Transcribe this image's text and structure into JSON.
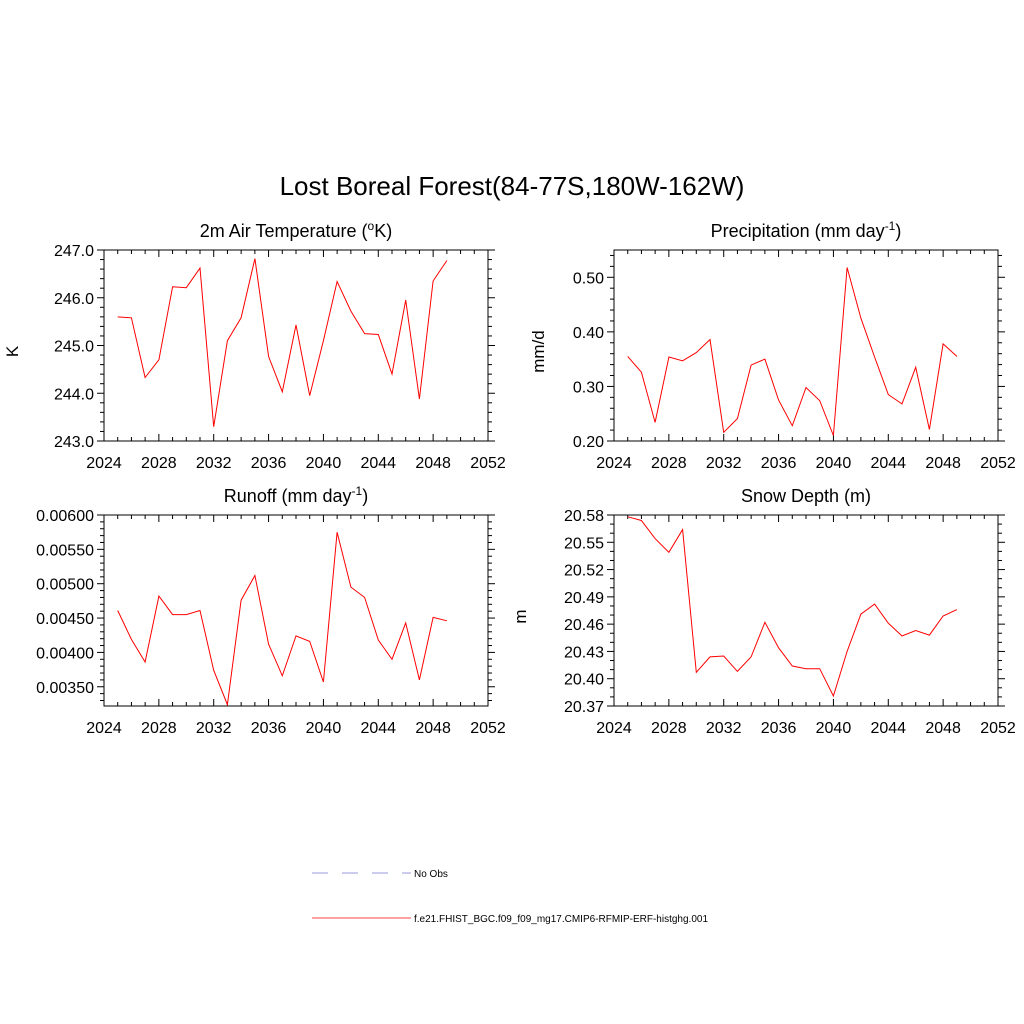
{
  "title": "Lost Boreal Forest(84-77S,180W-162W)",
  "legend": {
    "entries": [
      {
        "label": "No Obs",
        "color": "#9999dd",
        "style": "dashed"
      },
      {
        "label": "f.e21.FHIST_BGC.f09_f09_mg17.CMIP6-RFMIP-ERF-histghg.001",
        "color": "#ff4444",
        "style": "solid"
      }
    ]
  },
  "chart_data": [
    {
      "type": "line",
      "title": "2m Air Temperature (",
      "title_sup": "o",
      "title_end": "K)",
      "ylabel": "K",
      "xlim": [
        2024,
        2052
      ],
      "xticks": [
        2024,
        2028,
        2032,
        2036,
        2040,
        2044,
        2048,
        2052
      ],
      "ylim": [
        243.0,
        247.0
      ],
      "yticks": [
        243.0,
        244.0,
        245.0,
        246.0,
        247.0
      ],
      "ytick_labels": [
        "243.0",
        "244.0",
        "245.0",
        "246.0",
        "247.0"
      ],
      "yminor": 0.2,
      "series": [
        {
          "color": "#ff0000",
          "x": [
            2025,
            2026,
            2027,
            2028,
            2029,
            2030,
            2031,
            2032,
            2033,
            2034,
            2035,
            2036,
            2037,
            2038,
            2039,
            2040,
            2041,
            2042,
            2043,
            2044,
            2045,
            2046,
            2047,
            2048,
            2049
          ],
          "y": [
            245.6,
            245.58,
            244.33,
            244.7,
            246.23,
            246.21,
            246.62,
            243.3,
            245.1,
            245.58,
            246.82,
            244.77,
            244.03,
            245.43,
            243.95,
            245.1,
            246.34,
            245.72,
            245.25,
            245.23,
            244.4,
            245.95,
            243.88,
            246.35,
            246.78
          ]
        }
      ]
    },
    {
      "type": "line",
      "title": "Precipitation (mm day",
      "title_sup": "-1",
      "title_end": ")",
      "ylabel": "mm/d",
      "xlim": [
        2024,
        2052
      ],
      "xticks": [
        2024,
        2028,
        2032,
        2036,
        2040,
        2044,
        2048,
        2052
      ],
      "ylim": [
        0.2,
        0.55
      ],
      "yticks": [
        0.2,
        0.3,
        0.4,
        0.5
      ],
      "ytick_labels": [
        "0.20",
        "0.30",
        "0.40",
        "0.50"
      ],
      "yminor": 0.02,
      "series": [
        {
          "color": "#ff0000",
          "x": [
            2025,
            2026,
            2027,
            2028,
            2029,
            2030,
            2031,
            2032,
            2033,
            2034,
            2035,
            2036,
            2037,
            2038,
            2039,
            2040,
            2041,
            2042,
            2043,
            2044,
            2045,
            2046,
            2047,
            2048,
            2049
          ],
          "y": [
            0.355,
            0.326,
            0.234,
            0.354,
            0.347,
            0.362,
            0.386,
            0.216,
            0.241,
            0.339,
            0.35,
            0.275,
            0.228,
            0.298,
            0.274,
            0.21,
            0.518,
            0.425,
            0.354,
            0.285,
            0.268,
            0.335,
            0.221,
            0.378,
            0.355
          ]
        }
      ]
    },
    {
      "type": "line",
      "title": "Runoff (mm day",
      "title_sup": "-1",
      "title_end": ")",
      "ylabel": "",
      "xlim": [
        2024,
        2052
      ],
      "xticks": [
        2024,
        2028,
        2032,
        2036,
        2040,
        2044,
        2048,
        2052
      ],
      "ylim": [
        0.00322,
        0.006
      ],
      "yticks": [
        0.0035,
        0.004,
        0.0045,
        0.005,
        0.0055,
        0.006
      ],
      "ytick_labels": [
        "0.00350",
        "0.00400",
        "0.00450",
        "0.00500",
        "0.00550",
        "0.00600"
      ],
      "yminor": 0.0001,
      "series": [
        {
          "color": "#ff0000",
          "x": [
            2025,
            2026,
            2027,
            2028,
            2029,
            2030,
            2031,
            2032,
            2033,
            2034,
            2035,
            2036,
            2037,
            2038,
            2039,
            2040,
            2041,
            2042,
            2043,
            2044,
            2045,
            2046,
            2047,
            2048,
            2049
          ],
          "y": [
            0.00461,
            0.00419,
            0.00386,
            0.00482,
            0.00455,
            0.00455,
            0.00461,
            0.00374,
            0.00324,
            0.00476,
            0.00512,
            0.00412,
            0.00366,
            0.00424,
            0.00416,
            0.00357,
            0.00575,
            0.00495,
            0.0048,
            0.00418,
            0.0039,
            0.00443,
            0.0036,
            0.00451,
            0.00446
          ]
        }
      ]
    },
    {
      "type": "line",
      "title": "Snow Depth (m)",
      "title_sup": "",
      "title_end": "",
      "ylabel": "m",
      "xlim": [
        2024,
        2052
      ],
      "xticks": [
        2024,
        2028,
        2032,
        2036,
        2040,
        2044,
        2048,
        2052
      ],
      "ylim": [
        20.37,
        20.58
      ],
      "yticks": [
        20.37,
        20.4,
        20.43,
        20.46,
        20.49,
        20.52,
        20.55,
        20.58
      ],
      "ytick_labels": [
        "20.37",
        "20.40",
        "20.43",
        "20.46",
        "20.49",
        "20.52",
        "20.55",
        "20.58"
      ],
      "yminor": 0.01,
      "series": [
        {
          "color": "#ff0000",
          "x": [
            2025,
            2026,
            2027,
            2028,
            2029,
            2030,
            2031,
            2032,
            2033,
            2034,
            2035,
            2036,
            2037,
            2038,
            2039,
            2040,
            2041,
            2042,
            2043,
            2044,
            2045,
            2046,
            2047,
            2048,
            2049
          ],
          "y": [
            20.578,
            20.574,
            20.554,
            20.539,
            20.564,
            20.407,
            20.424,
            20.425,
            20.408,
            20.424,
            20.462,
            20.434,
            20.414,
            20.411,
            20.411,
            20.381,
            20.43,
            20.471,
            20.482,
            20.461,
            20.447,
            20.453,
            20.448,
            20.469,
            20.476
          ]
        }
      ]
    }
  ]
}
